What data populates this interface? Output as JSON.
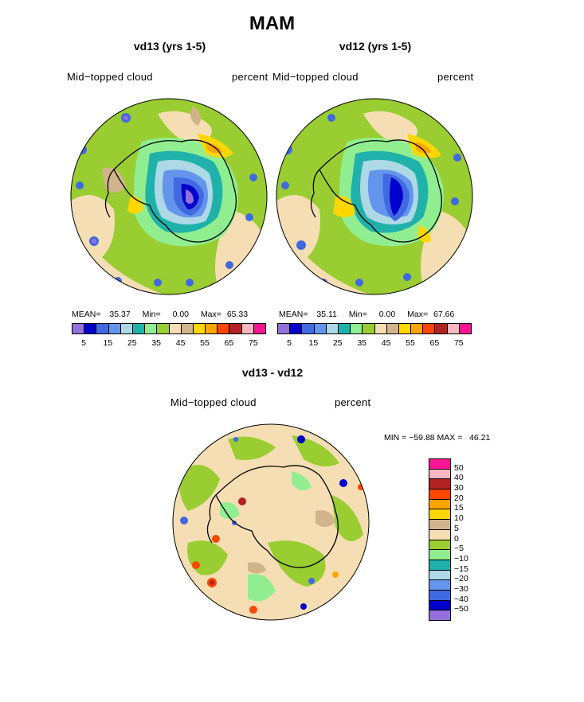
{
  "title": "MAM",
  "left_panel": {
    "subtitle": "vd13 (yrs 1-5)",
    "left_label": "Mid−topped cloud",
    "right_label": "percent",
    "stats": {
      "mean_label": "MEAN=",
      "mean": "35.37",
      "min_label": "Min=",
      "min": "0.00",
      "max_label": "Max=",
      "max": "65.33"
    }
  },
  "right_panel": {
    "subtitle": "vd12 (yrs 1-5)",
    "left_label": "Mid−topped cloud",
    "right_label": "percent",
    "stats": {
      "mean_label": "MEAN=",
      "mean": "35.11",
      "min_label": "Min=",
      "min": "0.00",
      "max_label": "Max=",
      "max": "67.66"
    }
  },
  "diff_panel": {
    "subtitle": "vd13 - vd12",
    "left_label": "Mid−topped cloud",
    "right_label": "percent",
    "minmax": "MIN = −59.88 MAX =   46.21"
  },
  "colorbar_abs": {
    "colors": [
      "#9370db",
      "#0000cd",
      "#4169e1",
      "#6495ed",
      "#add8e6",
      "#20b2aa",
      "#90ee90",
      "#9acd32",
      "#f5deb3",
      "#d2b48c",
      "#ffd700",
      "#ffa500",
      "#ff4500",
      "#b22222",
      "#ffb6c1",
      "#ff1493"
    ],
    "tick_labels": [
      "5",
      "15",
      "25",
      "35",
      "45",
      "55",
      "65",
      "75"
    ]
  },
  "colorbar_diff": {
    "colors": [
      "#9370db",
      "#0000cd",
      "#4169e1",
      "#6495ed",
      "#add8e6",
      "#20b2aa",
      "#90ee90",
      "#9acd32",
      "#f5deb3",
      "#d2b48c",
      "#ffd700",
      "#ffa500",
      "#ff4500",
      "#b22222",
      "#ffb6c1",
      "#ff1493"
    ],
    "tick_labels": [
      "50",
      "40",
      "30",
      "20",
      "15",
      "10",
      "5",
      "0",
      "−5",
      "−10",
      "−15",
      "−20",
      "−30",
      "−40",
      "−50"
    ]
  }
}
